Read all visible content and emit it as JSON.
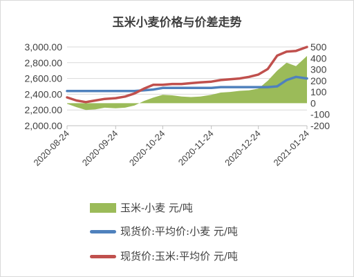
{
  "chart_data": {
    "type": "line",
    "title": "玉米小麦价格与价差走势",
    "x_ticks": [
      "2020-08-24",
      "2020-09-24",
      "2020-10-24",
      "2020-11-24",
      "2020-12-24",
      "2021-01-24"
    ],
    "x": [
      "2020-08-24",
      "2020-08-30",
      "2020-09-05",
      "2020-09-11",
      "2020-09-17",
      "2020-09-24",
      "2020-09-30",
      "2020-10-06",
      "2020-10-12",
      "2020-10-18",
      "2020-10-24",
      "2020-10-30",
      "2020-11-05",
      "2020-11-11",
      "2020-11-17",
      "2020-11-24",
      "2020-11-30",
      "2020-12-06",
      "2020-12-12",
      "2020-12-18",
      "2020-12-24",
      "2020-12-30",
      "2021-01-05",
      "2021-01-11",
      "2021-01-17",
      "2021-01-24"
    ],
    "y_left_ticks": [
      "2,000.00",
      "2,200.00",
      "2,400.00",
      "2,600.00",
      "2,800.00",
      "3,000.00"
    ],
    "y_left_lim": [
      2000,
      3000
    ],
    "y_right_ticks": [
      "-200",
      "-100",
      "0",
      "100",
      "200",
      "300",
      "400",
      "500"
    ],
    "y_right_lim": [
      -200,
      500
    ],
    "series": [
      {
        "name": "玉米-小麦 元/吨",
        "type": "area",
        "axis": "right",
        "color": "#9bbb59",
        "values": [
          -5,
          -35,
          -60,
          -55,
          -40,
          -45,
          -40,
          -20,
          20,
          50,
          75,
          70,
          60,
          55,
          60,
          75,
          95,
          100,
          110,
          115,
          130,
          200,
          290,
          360,
          330,
          420
        ]
      },
      {
        "name": "现货价:平均价:小麦 元/吨",
        "type": "line",
        "axis": "left",
        "color": "#4f81bd",
        "values": [
          2440,
          2440,
          2440,
          2440,
          2440,
          2440,
          2440,
          2440,
          2450,
          2460,
          2480,
          2480,
          2480,
          2480,
          2480,
          2480,
          2490,
          2490,
          2490,
          2490,
          2490,
          2490,
          2500,
          2580,
          2620,
          2600
        ]
      },
      {
        "name": "现货价:玉米:平均价 元/吨",
        "type": "line",
        "axis": "left",
        "color": "#c0504d",
        "values": [
          2360,
          2320,
          2300,
          2320,
          2340,
          2350,
          2370,
          2410,
          2470,
          2520,
          2520,
          2530,
          2530,
          2540,
          2550,
          2560,
          2580,
          2590,
          2600,
          2620,
          2650,
          2720,
          2890,
          2940,
          2950,
          3000
        ]
      }
    ],
    "legend_position": "bottom"
  }
}
